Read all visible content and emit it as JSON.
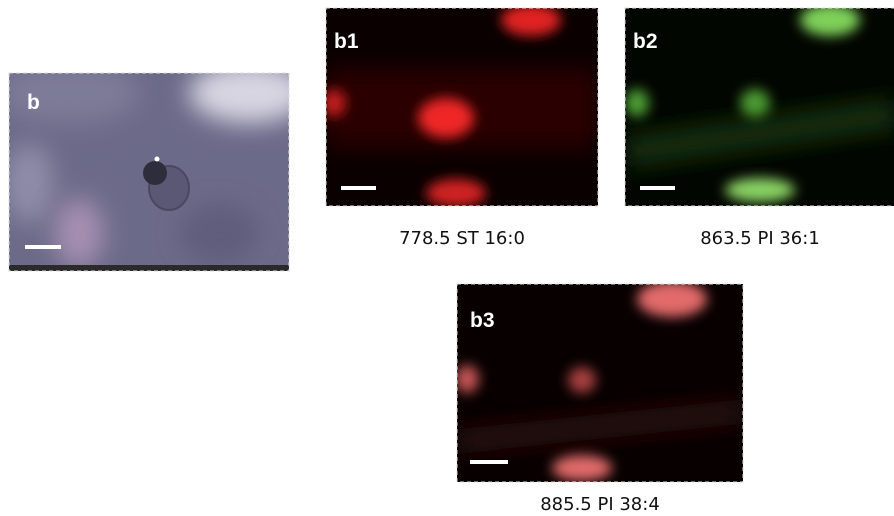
{
  "panels": [
    {
      "label": "b"
    },
    {
      "label": "b1",
      "caption": "778.5 ST 16:0"
    },
    {
      "label": "b2",
      "caption": "863.5 PI 36:1"
    },
    {
      "label": "b3",
      "caption": "885.5 PI 38:4"
    }
  ]
}
